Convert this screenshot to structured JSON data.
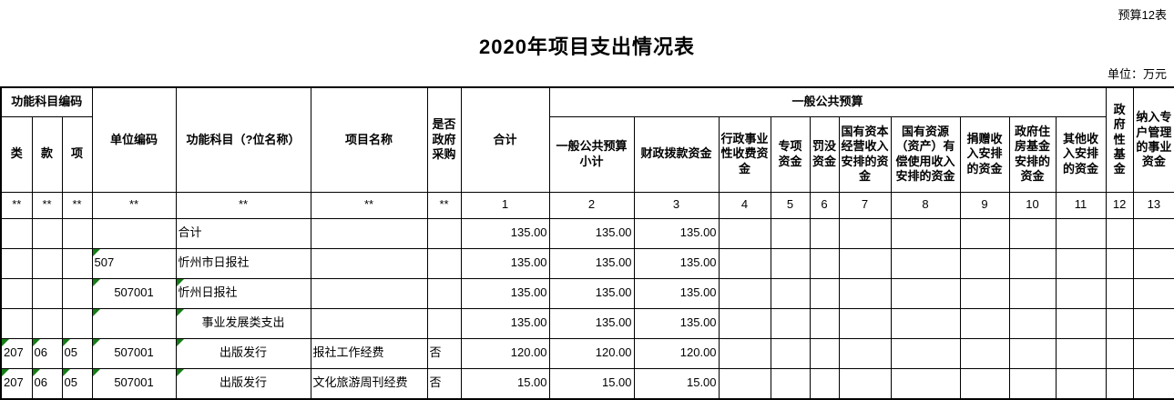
{
  "page": {
    "corner_label": "预算12表",
    "title": "2020年项目支出情况表",
    "unit_label": "单位：万元"
  },
  "colors": {
    "flag_green": "#177c17"
  },
  "table": {
    "groups": {
      "func_code_group": "功能科目编码",
      "general_budget_group": "一般公共预算"
    },
    "header": {
      "lei": "类",
      "kuan": "款",
      "xiang": "项",
      "unit_code": "单位编码",
      "func_subject": "功能科目（?位名称）",
      "project_name": "项目名称",
      "gov_purchase": "是否政府采购",
      "total": "合计",
      "gb_subtotal": "一般公共预算小计",
      "fiscal_funds": "财政拨款资金",
      "admin_fee": "行政事业性收费资金",
      "special": "专项资金",
      "fines": "罚没资金",
      "state_capital": "国有资本经营收入安排的资金",
      "state_resource": "国有资源（资产）有偿使用收入安排的资金",
      "donation": "捐赠收入安排的资金",
      "gov_housing": "政府住房基金安排的资金",
      "other_income": "其他收入安排的资金",
      "gov_fund": "政府性基金",
      "special_account": "纳入专户管理的事业资金"
    },
    "index_row": [
      "**",
      "**",
      "**",
      "**",
      "**",
      "**",
      "**",
      "1",
      "2",
      "3",
      "4",
      "5",
      "6",
      "7",
      "8",
      "9",
      "10",
      "11",
      "12",
      "13"
    ],
    "rows": [
      {
        "cells": {
          "lei": "",
          "kuan": "",
          "xiang": "",
          "unit_code": "",
          "func_subject": "合计",
          "project_name": "",
          "gov_purchase": "",
          "total": "135.00",
          "gb_subtotal": "135.00",
          "fiscal_funds": "135.00",
          "admin_fee": "",
          "special": "",
          "fines": "",
          "state_capital": "",
          "state_resource": "",
          "donation": "",
          "gov_housing": "",
          "other_income": "",
          "gov_fund": "",
          "special_account": ""
        },
        "styles": {
          "func_subject": "left"
        },
        "marks": []
      },
      {
        "cells": {
          "lei": "",
          "kuan": "",
          "xiang": "",
          "unit_code": "507",
          "func_subject": "忻州市日报社",
          "project_name": "",
          "gov_purchase": "",
          "total": "135.00",
          "gb_subtotal": "135.00",
          "fiscal_funds": "135.00",
          "admin_fee": "",
          "special": "",
          "fines": "",
          "state_capital": "",
          "state_resource": "",
          "donation": "",
          "gov_housing": "",
          "other_income": "",
          "gov_fund": "",
          "special_account": ""
        },
        "styles": {
          "unit_code": "left",
          "func_subject": "left"
        },
        "marks": [
          "unit_code"
        ]
      },
      {
        "cells": {
          "lei": "",
          "kuan": "",
          "xiang": "",
          "unit_code": "507001",
          "func_subject": "忻州日报社",
          "project_name": "",
          "gov_purchase": "",
          "total": "135.00",
          "gb_subtotal": "135.00",
          "fiscal_funds": "135.00",
          "admin_fee": "",
          "special": "",
          "fines": "",
          "state_capital": "",
          "state_resource": "",
          "donation": "",
          "gov_housing": "",
          "other_income": "",
          "gov_fund": "",
          "special_account": ""
        },
        "styles": {
          "unit_code": "center-indent",
          "func_subject": "indent"
        },
        "marks": [
          "unit_code",
          "func_subject"
        ]
      },
      {
        "cells": {
          "lei": "",
          "kuan": "",
          "xiang": "",
          "unit_code": "",
          "func_subject": "事业发展类支出",
          "project_name": "",
          "gov_purchase": "",
          "total": "135.00",
          "gb_subtotal": "135.00",
          "fiscal_funds": "135.00",
          "admin_fee": "",
          "special": "",
          "fines": "",
          "state_capital": "",
          "state_resource": "",
          "donation": "",
          "gov_housing": "",
          "other_income": "",
          "gov_fund": "",
          "special_account": ""
        },
        "styles": {
          "func_subject": "center"
        },
        "marks": [
          "unit_code",
          "func_subject"
        ]
      },
      {
        "cells": {
          "lei": "207",
          "kuan": "06",
          "xiang": "05",
          "unit_code": "507001",
          "func_subject": "出版发行",
          "project_name": "报社工作经费",
          "gov_purchase": "否",
          "total": "120.00",
          "gb_subtotal": "120.00",
          "fiscal_funds": "120.00",
          "admin_fee": "",
          "special": "",
          "fines": "",
          "state_capital": "",
          "state_resource": "",
          "donation": "",
          "gov_housing": "",
          "other_income": "",
          "gov_fund": "",
          "special_account": ""
        },
        "styles": {
          "unit_code": "center",
          "func_subject": "center"
        },
        "marks": [
          "lei",
          "kuan",
          "xiang",
          "unit_code",
          "func_subject"
        ]
      },
      {
        "cells": {
          "lei": "207",
          "kuan": "06",
          "xiang": "05",
          "unit_code": "507001",
          "func_subject": "出版发行",
          "project_name": "文化旅游周刊经费",
          "gov_purchase": "否",
          "total": "15.00",
          "gb_subtotal": "15.00",
          "fiscal_funds": "15.00",
          "admin_fee": "",
          "special": "",
          "fines": "",
          "state_capital": "",
          "state_resource": "",
          "donation": "",
          "gov_housing": "",
          "other_income": "",
          "gov_fund": "",
          "special_account": ""
        },
        "styles": {
          "unit_code": "center",
          "func_subject": "center"
        },
        "marks": [
          "lei",
          "kuan",
          "xiang",
          "unit_code",
          "func_subject"
        ]
      }
    ]
  }
}
